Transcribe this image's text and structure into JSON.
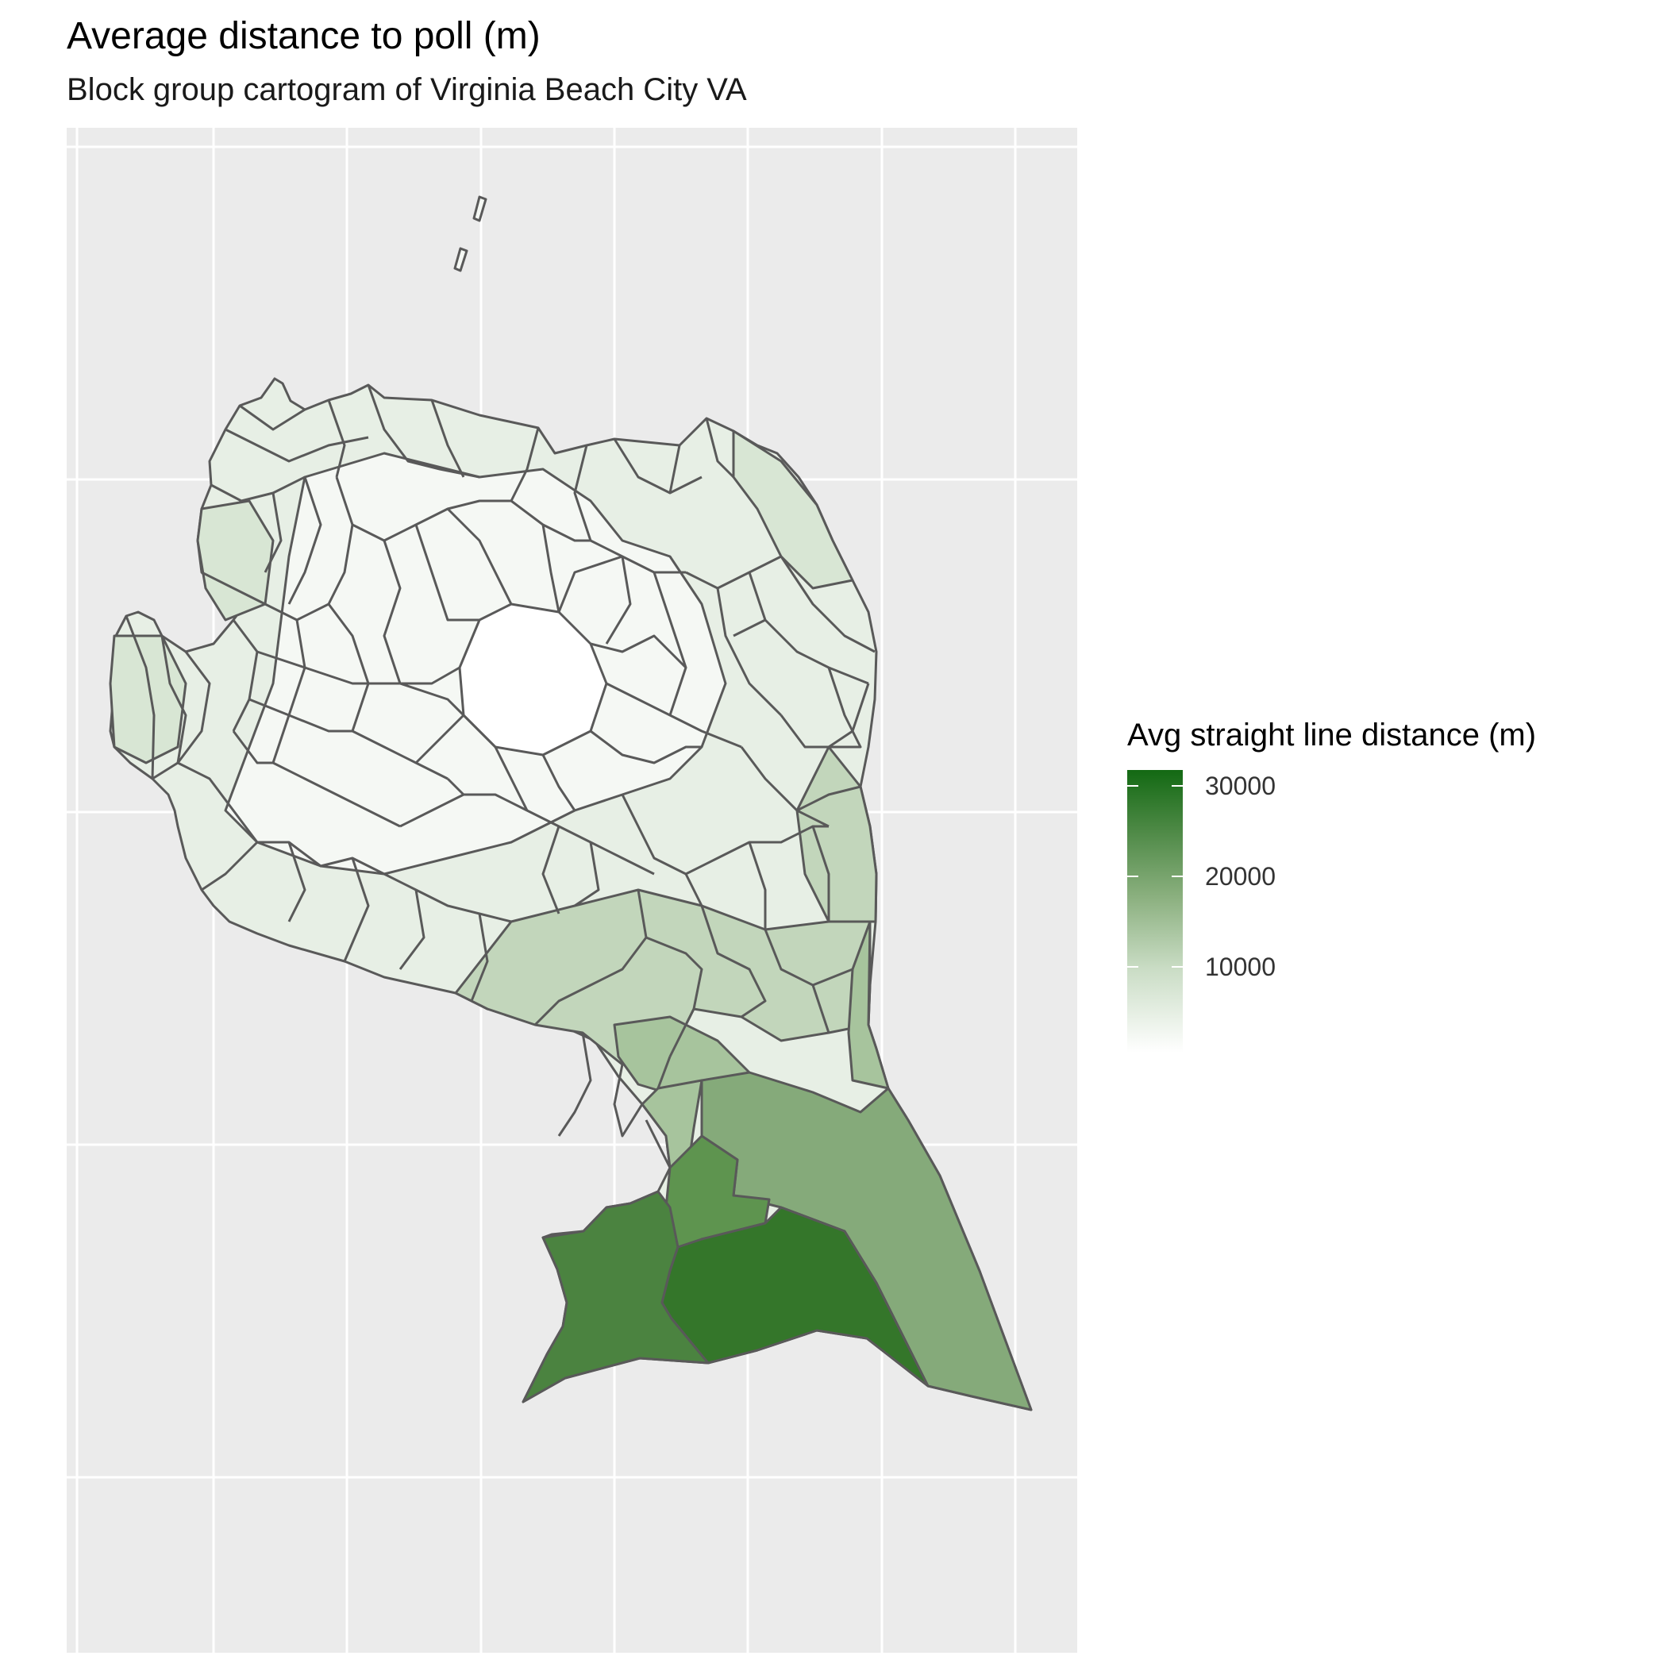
{
  "header": {
    "title": "Average distance to poll (m)",
    "subtitle": "Block group cartogram of Virginia Beach City VA"
  },
  "legend": {
    "title": "Avg straight line distance (m)",
    "breaks": [
      "30000",
      "20000",
      "10000"
    ],
    "colors": {
      "low": "#ffffff",
      "high": "#136913"
    }
  },
  "map": {
    "fill_levels": [
      "#f5f8f4",
      "#e7efe5",
      "#d8e6d4",
      "#c2d6bb",
      "#a7c49d",
      "#85aa7a",
      "#5e944f",
      "#4b8340",
      "#34762a"
    ],
    "border_color": "#595959",
    "panel_color": "#ebebeb",
    "grid_color": "#ffffff"
  }
}
